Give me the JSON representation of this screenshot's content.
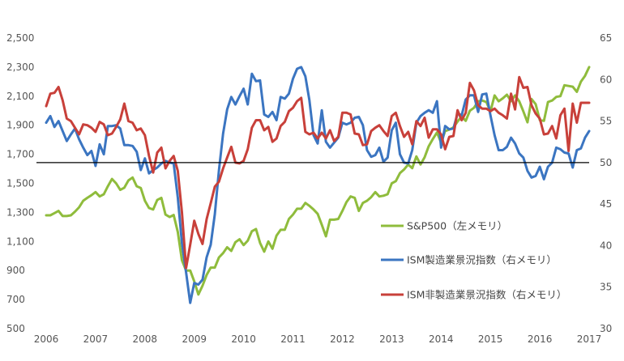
{
  "chart_data": {
    "type": "line",
    "x_start": 2006.0,
    "x_step_months": 1,
    "x_ticks": [
      "2006",
      "2007",
      "2008",
      "2009",
      "2010",
      "2011",
      "2012",
      "2013",
      "2014",
      "2015",
      "2016",
      "2017"
    ],
    "y_left": {
      "ticks": [
        "500",
        "700",
        "900",
        "1,100",
        "1,300",
        "1,500",
        "1,700",
        "1,900",
        "2,100",
        "2,300",
        "2,500"
      ],
      "range": [
        500,
        2500
      ]
    },
    "y_right": {
      "ticks": [
        "30",
        "35",
        "40",
        "45",
        "50",
        "55",
        "60",
        "65"
      ],
      "range": [
        30,
        65
      ]
    },
    "reference_line": {
      "axis": "right",
      "value": 50,
      "color": "#000000"
    },
    "grid": false,
    "legend_position": "right-center",
    "series": [
      {
        "name": "S&P500（左メモリ）",
        "axis": "left",
        "color": "#8fbc3c",
        "values": [
          1280,
          1280,
          1295,
          1310,
          1275,
          1275,
          1280,
          1305,
          1335,
          1380,
          1400,
          1418,
          1440,
          1410,
          1425,
          1480,
          1530,
          1500,
          1455,
          1470,
          1520,
          1540,
          1480,
          1468,
          1380,
          1330,
          1320,
          1385,
          1400,
          1285,
          1268,
          1282,
          1165,
          970,
          900,
          900,
          825,
          735,
          795,
          870,
          920,
          920,
          990,
          1020,
          1060,
          1035,
          1095,
          1115,
          1075,
          1105,
          1170,
          1185,
          1090,
          1030,
          1100,
          1050,
          1140,
          1180,
          1180,
          1255,
          1285,
          1325,
          1325,
          1365,
          1345,
          1320,
          1290,
          1215,
          1135,
          1250,
          1250,
          1255,
          1310,
          1370,
          1410,
          1400,
          1310,
          1365,
          1380,
          1405,
          1440,
          1410,
          1415,
          1425,
          1500,
          1515,
          1570,
          1595,
          1630,
          1605,
          1685,
          1630,
          1680,
          1755,
          1805,
          1850,
          1780,
          1860,
          1870,
          1885,
          1925,
          1960,
          1930,
          2000,
          2020,
          2065,
          2070,
          2060,
          1995,
          2105,
          2065,
          2085,
          2110,
          2065,
          2105,
          2065,
          1995,
          1920,
          2080,
          2045,
          1935,
          1930,
          2060,
          2070,
          2095,
          2100,
          2175,
          2170,
          2165,
          2130,
          2200,
          2240,
          2300
        ]
      },
      {
        "name": "ISM製造業景況指数（右メモリ）",
        "axis": "right",
        "color": "#3b75c1",
        "values": [
          54.8,
          55.6,
          54.3,
          55.0,
          53.8,
          52.6,
          53.4,
          54.1,
          52.8,
          51.8,
          50.9,
          51.4,
          49.6,
          52.2,
          51.0,
          54.4,
          54.4,
          54.5,
          54.1,
          52.1,
          52.1,
          52.0,
          51.3,
          49.1,
          50.5,
          48.7,
          49.1,
          49.4,
          49.9,
          50.2,
          50.0,
          49.9,
          45.8,
          40.3,
          36.8,
          33.1,
          35.5,
          35.3,
          35.9,
          38.6,
          40.1,
          43.8,
          49.1,
          53.5,
          56.4,
          57.9,
          57.0,
          58.0,
          58.9,
          57.0,
          60.7,
          59.8,
          59.9,
          55.8,
          55.5,
          56.1,
          55.1,
          57.9,
          57.7,
          58.3,
          60.1,
          61.3,
          61.5,
          60.4,
          57.5,
          53.3,
          52.3,
          56.3,
          52.5,
          51.8,
          52.4,
          53.0,
          54.8,
          54.6,
          54.8,
          55.4,
          55.5,
          54.5,
          51.5,
          50.7,
          50.9,
          51.8,
          50.1,
          50.6,
          53.9,
          54.8,
          51.0,
          50.0,
          49.9,
          51.5,
          54.8,
          55.6,
          56.0,
          56.3,
          56.0,
          57.4,
          51.8,
          54.4,
          54.0,
          54.1,
          55.9,
          55.7,
          57.6,
          58.1,
          58.1,
          56.1,
          58.2,
          58.3,
          55.7,
          53.3,
          51.5,
          51.5,
          51.9,
          53.0,
          52.3,
          51.1,
          50.6,
          49.0,
          48.2,
          48.4,
          49.5,
          48.0,
          49.5,
          50.0,
          51.8,
          51.6,
          51.2,
          51.1,
          49.4,
          51.5,
          51.7,
          53.0,
          53.8
        ]
      },
      {
        "name": "ISM非製造業景況指数（右メモリ）",
        "axis": "right",
        "color": "#c8403a",
        "values": [
          56.8,
          58.3,
          58.4,
          59.1,
          57.5,
          55.3,
          55.0,
          54.2,
          53.4,
          54.6,
          54.5,
          54.2,
          53.7,
          54.9,
          54.6,
          53.3,
          53.5,
          54.3,
          55.2,
          57.1,
          55.0,
          54.8,
          53.9,
          54.1,
          53.3,
          50.8,
          48.8,
          51.2,
          51.8,
          49.3,
          50.2,
          50.8,
          49.0,
          44.0,
          37.3,
          40.1,
          43.0,
          41.4,
          40.2,
          43.2,
          45.1,
          47.1,
          47.7,
          49.3,
          50.6,
          51.9,
          50.0,
          49.9,
          50.2,
          51.6,
          54.2,
          55.1,
          55.1,
          53.9,
          54.3,
          52.5,
          52.9,
          54.4,
          54.9,
          56.2,
          56.6,
          57.4,
          57.8,
          53.7,
          53.4,
          53.6,
          52.9,
          53.6,
          52.9,
          53.9,
          52.6,
          53.1,
          56.0,
          56.0,
          55.8,
          53.5,
          53.4,
          52.1,
          52.2,
          53.8,
          54.2,
          54.5,
          53.8,
          53.2,
          55.6,
          56.0,
          54.4,
          53.1,
          53.7,
          52.2,
          55.0,
          54.4,
          55.4,
          53.0,
          54.0,
          54.0,
          53.4,
          51.6,
          53.1,
          53.2,
          56.3,
          55.1,
          56.0,
          59.6,
          58.7,
          56.9,
          56.5,
          56.5,
          56.2,
          56.5,
          56.0,
          55.7,
          55.3,
          58.3,
          56.4,
          60.3,
          59.0,
          59.1,
          56.9,
          55.9,
          55.3,
          53.4,
          53.5,
          54.4,
          52.9,
          55.7,
          56.5,
          51.4,
          57.1,
          54.8,
          57.2,
          57.2,
          57.2
        ]
      }
    ]
  }
}
